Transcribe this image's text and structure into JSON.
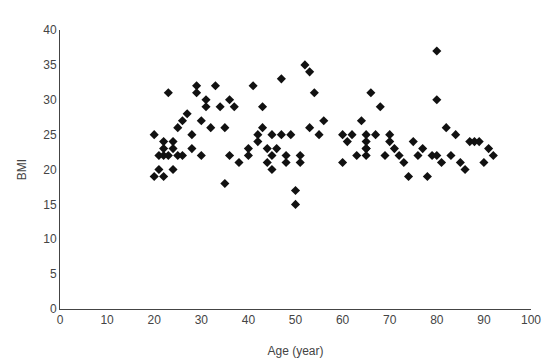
{
  "chart_data": {
    "type": "scatter",
    "xlabel": "Age (year)",
    "ylabel": "BMI",
    "x": [
      20,
      20,
      21,
      21,
      22,
      22,
      22,
      22,
      23,
      23,
      24,
      24,
      24,
      25,
      25,
      26,
      26,
      27,
      28,
      28,
      29,
      29,
      30,
      30,
      31,
      31,
      32,
      33,
      34,
      35,
      35,
      36,
      36,
      37,
      38,
      40,
      40,
      41,
      42,
      42,
      43,
      43,
      44,
      44,
      45,
      45,
      45,
      46,
      47,
      47,
      48,
      48,
      49,
      50,
      50,
      51,
      51,
      52,
      53,
      53,
      54,
      55,
      56,
      60,
      60,
      61,
      62,
      63,
      64,
      65,
      65,
      65,
      65,
      65,
      66,
      67,
      68,
      69,
      70,
      70,
      71,
      72,
      73,
      74,
      75,
      76,
      77,
      78,
      79,
      80,
      80,
      80,
      81,
      82,
      83,
      84,
      85,
      86,
      87,
      88,
      89,
      90,
      91,
      92
    ],
    "values": [
      19,
      25,
      22,
      20,
      22,
      23,
      24,
      19,
      22,
      31,
      20,
      23,
      24,
      22,
      26,
      27,
      22,
      28,
      25,
      23,
      32,
      31,
      27,
      22,
      30,
      29,
      26,
      32,
      29,
      18,
      26,
      30,
      22,
      29,
      21,
      23,
      22,
      32,
      25,
      24,
      26,
      29,
      23,
      21,
      22,
      25,
      20,
      23,
      33,
      25,
      22,
      21,
      25,
      15,
      17,
      21,
      22,
      35,
      34,
      26,
      31,
      25,
      27,
      21,
      25,
      24,
      25,
      22,
      27,
      24,
      25,
      23,
      23,
      22,
      31,
      25,
      29,
      22,
      24,
      25,
      23,
      22,
      21,
      19,
      24,
      22,
      23,
      19,
      22,
      37,
      22,
      30,
      21,
      26,
      22,
      25,
      21,
      20,
      24,
      24,
      24,
      21,
      23,
      22
    ],
    "xlim": [
      0,
      100
    ],
    "ylim": [
      0,
      40
    ],
    "xticks": [
      0,
      10,
      20,
      30,
      40,
      50,
      60,
      70,
      80,
      90,
      100
    ],
    "yticks": [
      0,
      5,
      10,
      15,
      20,
      25,
      30,
      35,
      40
    ],
    "color": "#111111",
    "marker": "diamond",
    "grid": false
  }
}
